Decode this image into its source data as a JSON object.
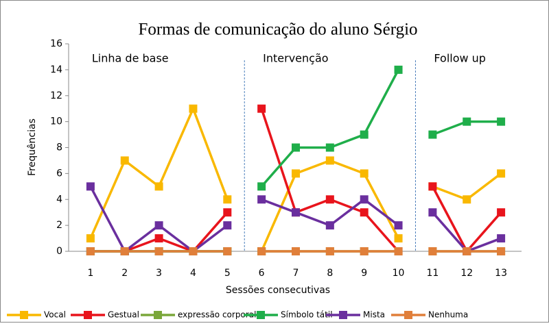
{
  "chart_data": {
    "type": "line",
    "title": "Formas de comunicação do aluno Sérgio",
    "x_label": "Sessões consecutivas",
    "y_label": "Frequências",
    "x": [
      1,
      2,
      3,
      4,
      5,
      6,
      7,
      8,
      9,
      10,
      11,
      12,
      13
    ],
    "xlim": [
      0.36,
      13.6
    ],
    "xticks": [
      1,
      2,
      3,
      4,
      5,
      6,
      7,
      8,
      9,
      10,
      11,
      12,
      13
    ],
    "ylim": [
      0,
      16
    ],
    "yticks": [
      0,
      2,
      4,
      6,
      8,
      10,
      12,
      14,
      16
    ],
    "phases": [
      {
        "label": "Linha de base",
        "first": 1,
        "last": 5
      },
      {
        "label": "Intervenção",
        "first": 6,
        "last": 10
      },
      {
        "label": "Follow up",
        "first": 11,
        "last": 13
      }
    ],
    "series": [
      {
        "name": "Vocal",
        "color": "#f9b800",
        "values": [
          1,
          7,
          5,
          11,
          4,
          0,
          6,
          7,
          6,
          1,
          5,
          4,
          6
        ]
      },
      {
        "name": "Gestual",
        "color": "#e8141c",
        "values": [
          0,
          0,
          1,
          0,
          3,
          11,
          3,
          4,
          3,
          0,
          5,
          0,
          3
        ]
      },
      {
        "name": "expressão corporal",
        "color": "#7aa73a",
        "values": [
          0,
          0,
          0,
          0,
          0,
          0,
          0,
          0,
          0,
          0,
          0,
          0,
          0
        ]
      },
      {
        "name": "Símbolo tátil",
        "color": "#1fae4a",
        "values": [
          0,
          0,
          0,
          0,
          0,
          5,
          8,
          8,
          9,
          14,
          9,
          10,
          10
        ]
      },
      {
        "name": "Mista",
        "color": "#6a2f9e",
        "values": [
          5,
          0,
          2,
          0,
          2,
          4,
          3,
          2,
          4,
          2,
          3,
          0,
          1
        ]
      },
      {
        "name": "Nenhuma",
        "color": "#e07f3a",
        "values": [
          0,
          0,
          0,
          0,
          0,
          0,
          0,
          0,
          0,
          0,
          0,
          0,
          0
        ]
      }
    ]
  }
}
